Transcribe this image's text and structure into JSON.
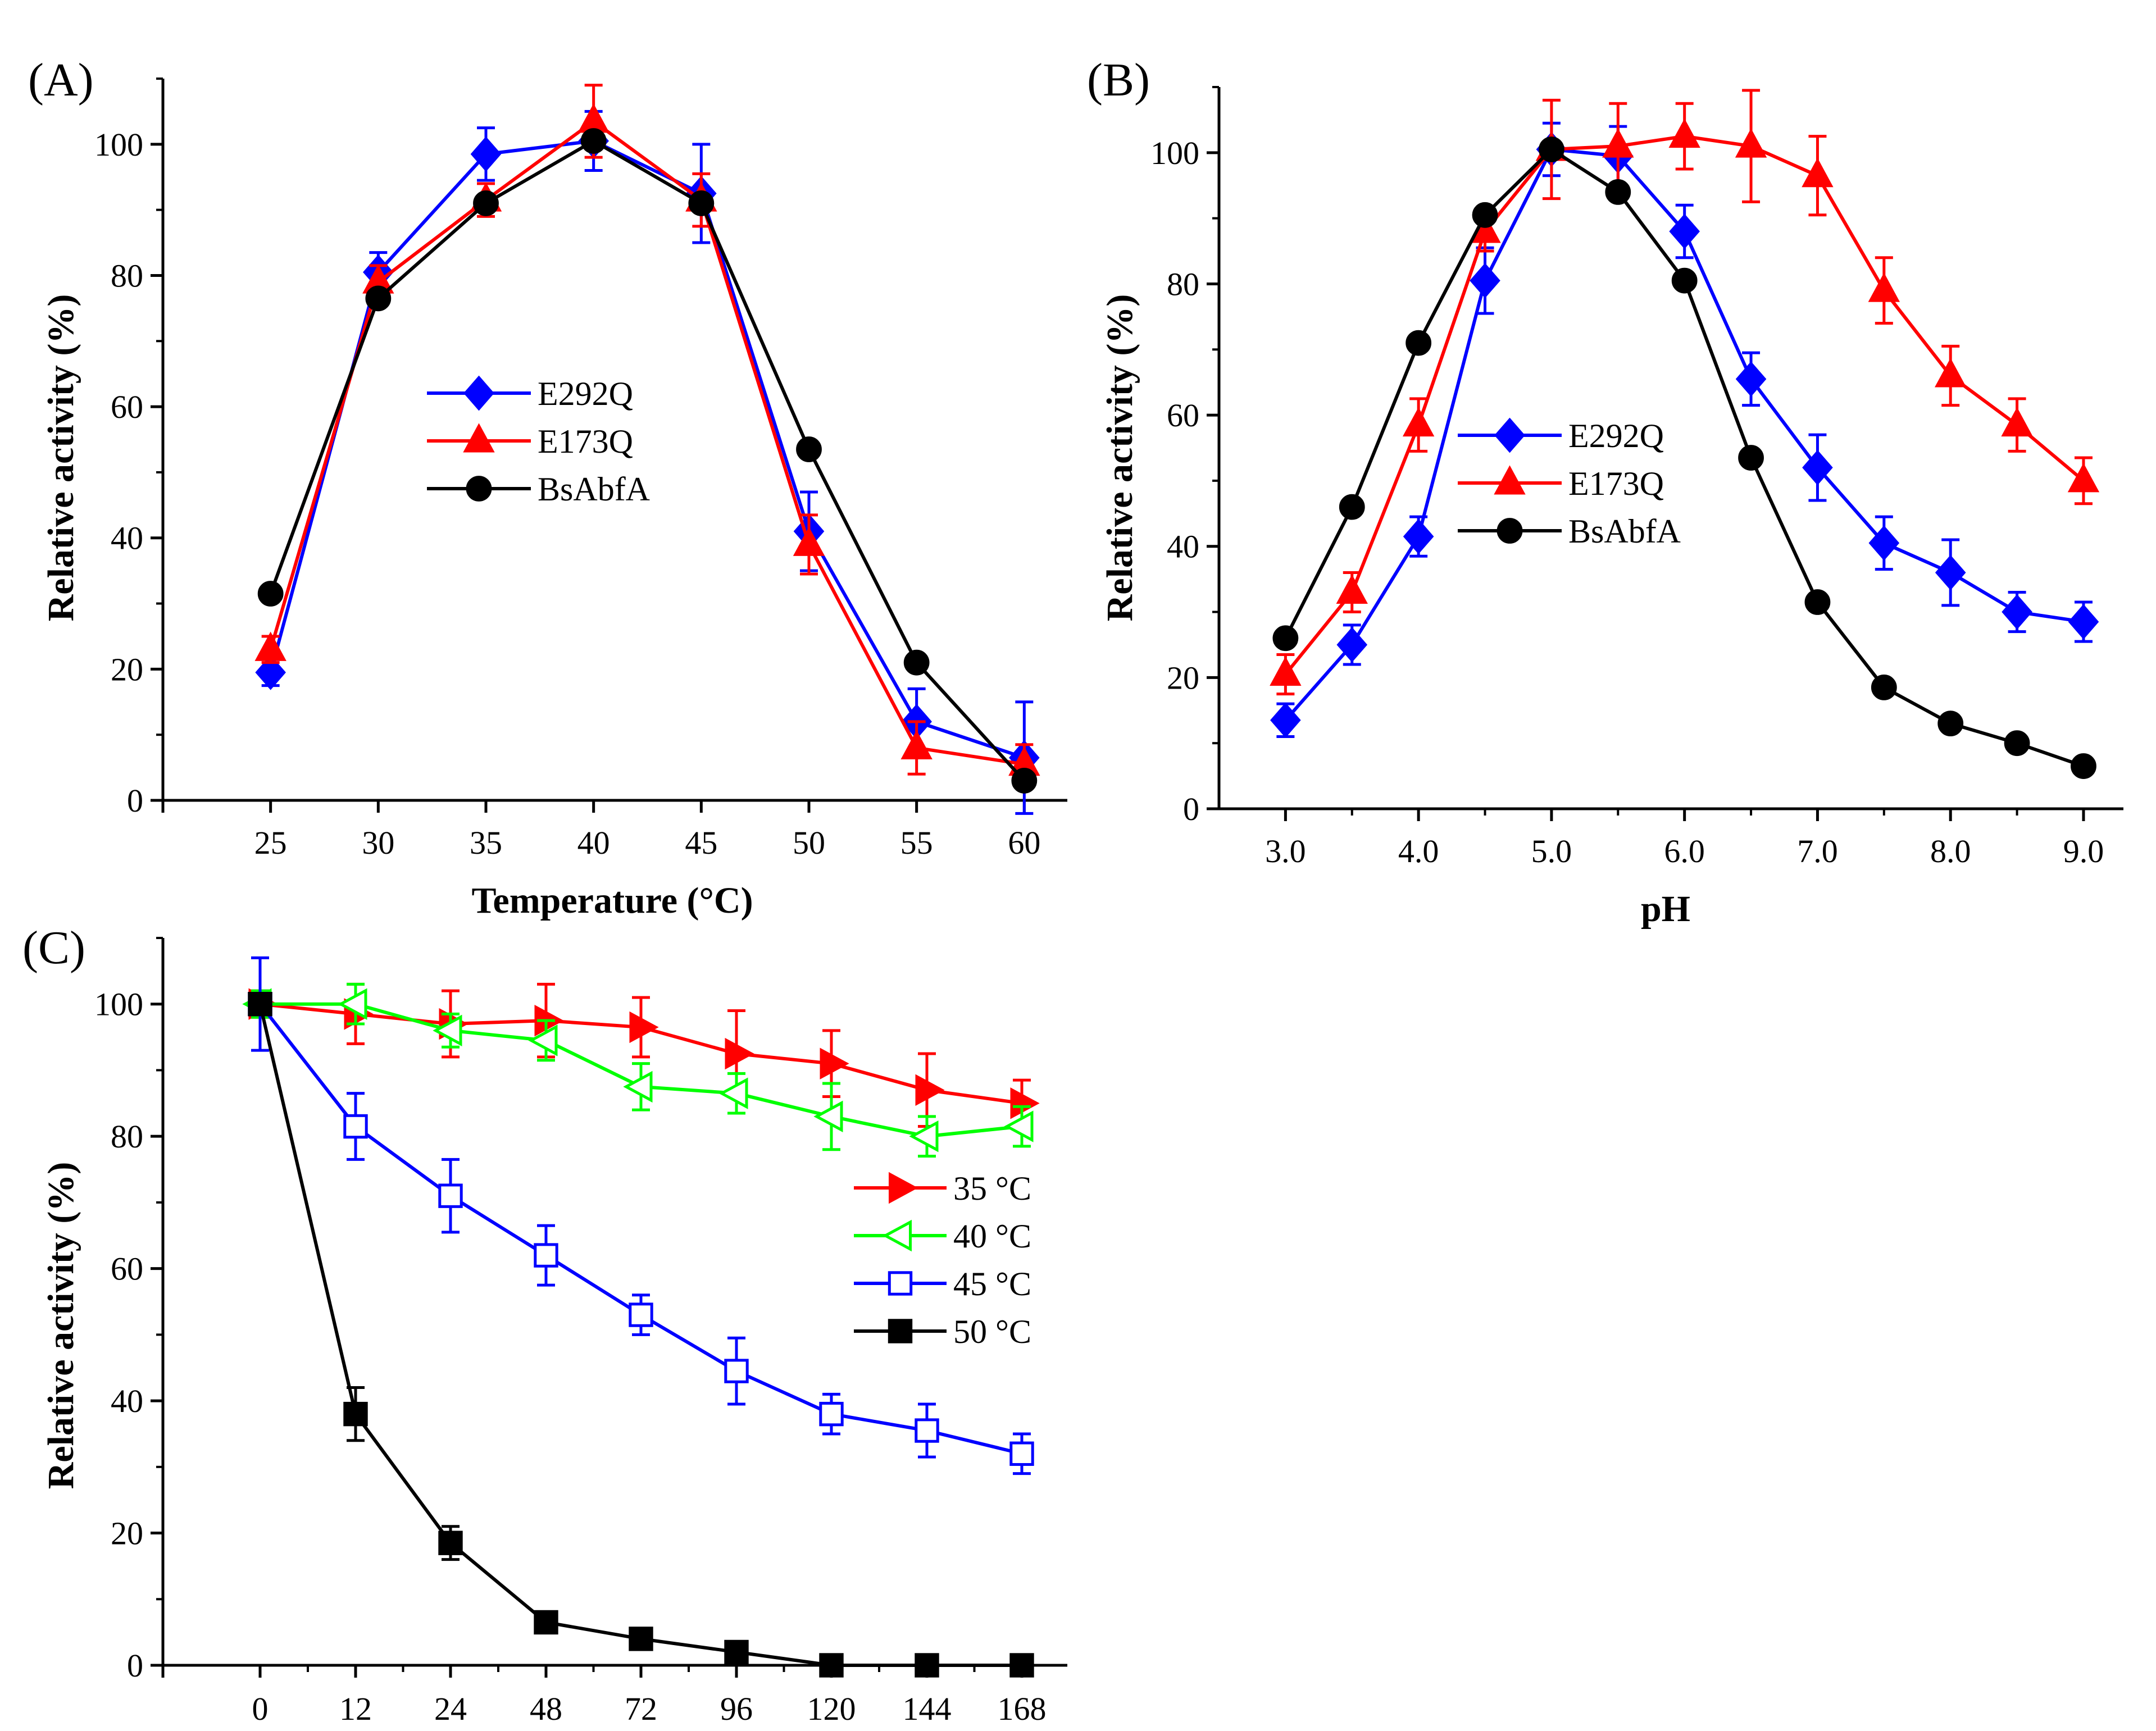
{
  "chart_data": [
    {
      "panel_label": "(A)",
      "type": "line",
      "xlabel": "Temperature (°C)",
      "ylabel": "Relative activity (%)",
      "x": [
        25,
        30,
        35,
        40,
        45,
        50,
        55,
        60
      ],
      "x_tick_labels": [
        "25",
        "30",
        "35",
        "40",
        "45",
        "50",
        "55",
        "60"
      ],
      "xlim": [
        20,
        62
      ],
      "ylim": [
        0,
        110
      ],
      "y_ticks": [
        0,
        20,
        40,
        60,
        80,
        100
      ],
      "legend_position": "center",
      "series": [
        {
          "name": "E292Q",
          "color": "#0000ff",
          "marker": "diamond",
          "filled": true,
          "values": [
            19.5,
            80.5,
            98.5,
            100.5,
            92.5,
            41,
            12,
            6.5
          ],
          "errors": [
            2,
            3,
            4,
            4.5,
            7.5,
            6,
            5,
            8.5
          ]
        },
        {
          "name": "E173Q",
          "color": "#ff0000",
          "marker": "triangle",
          "filled": true,
          "values": [
            23,
            79,
            91.5,
            103.5,
            91.5,
            39,
            8,
            5.5
          ],
          "errors": [
            2,
            2.5,
            2.5,
            5.5,
            4,
            4.5,
            4,
            3
          ]
        },
        {
          "name": "BsAbfA",
          "color": "#000000",
          "marker": "circle",
          "filled": true,
          "values": [
            31.5,
            76.5,
            91,
            100.5,
            91,
            53.5,
            21,
            3
          ],
          "errors": [
            0,
            0,
            0,
            0,
            0,
            0,
            0,
            0
          ]
        }
      ]
    },
    {
      "panel_label": "(B)",
      "type": "line",
      "xlabel": "pH",
      "ylabel": "Relative activity (%)",
      "x": [
        3.0,
        3.5,
        4.0,
        4.5,
        5.0,
        5.5,
        6.0,
        6.5,
        7.0,
        7.5,
        8.0,
        8.5,
        9.0
      ],
      "x_tick_values": [
        3,
        4,
        5,
        6,
        7,
        8,
        9
      ],
      "x_tick_labels": [
        "3.0",
        "4.0",
        "5.0",
        "6.0",
        "7.0",
        "8.0",
        "9.0"
      ],
      "xlim": [
        2.5,
        9.3
      ],
      "ylim": [
        0,
        110
      ],
      "y_ticks": [
        0,
        20,
        40,
        60,
        80,
        100
      ],
      "legend_position": "center-left",
      "series": [
        {
          "name": "E292Q",
          "color": "#0000ff",
          "marker": "diamond",
          "filled": true,
          "values": [
            13.5,
            25,
            41.5,
            80.5,
            100.5,
            99.5,
            88,
            65.5,
            52,
            40.5,
            36,
            30,
            28.5
          ],
          "errors": [
            2.5,
            3,
            3,
            5,
            4,
            4.5,
            4,
            4,
            5,
            4,
            5,
            3,
            3
          ]
        },
        {
          "name": "E173Q",
          "color": "#ff0000",
          "marker": "triangle",
          "filled": true,
          "values": [
            20.5,
            33,
            58.5,
            88,
            100.5,
            101,
            102.5,
            101,
            96.5,
            79,
            66,
            58.5,
            50
          ],
          "errors": [
            3,
            3,
            4,
            3,
            7.5,
            6.5,
            5,
            8.5,
            6,
            5,
            4.5,
            4,
            3.5
          ]
        },
        {
          "name": "BsAbfA",
          "color": "#000000",
          "marker": "circle",
          "filled": true,
          "values": [
            26,
            46,
            71,
            90.5,
            100.5,
            94,
            80.5,
            53.5,
            31.5,
            18.5,
            13,
            10,
            6.5
          ],
          "errors": [
            0,
            0,
            0,
            0,
            0,
            0,
            0,
            0,
            0,
            0,
            0,
            0,
            0
          ]
        }
      ]
    },
    {
      "panel_label": "(C)",
      "type": "line",
      "xlabel": "",
      "ylabel": "Relative activity (%)",
      "x": [
        0,
        12,
        24,
        48,
        72,
        96,
        120,
        144,
        168
      ],
      "x_tick_labels": [
        "0",
        "12",
        "24",
        "48",
        "72",
        "96",
        "120",
        "144",
        "168"
      ],
      "x_scale": "categorical",
      "ylim": [
        0,
        110
      ],
      "y_ticks": [
        0,
        20,
        40,
        60,
        80,
        100
      ],
      "legend_position": "center-right",
      "series": [
        {
          "name": "35 °C",
          "color": "#ff0000",
          "marker": "triangle-right",
          "filled": true,
          "values": [
            100,
            98.5,
            97,
            97.5,
            96.5,
            92.5,
            91,
            87,
            85
          ],
          "errors": [
            2,
            4.5,
            5,
            5.5,
            4.5,
            6.5,
            5,
            5.5,
            3.5
          ]
        },
        {
          "name": "40 °C",
          "color": "#00ff00",
          "marker": "triangle-left",
          "filled": false,
          "values": [
            100,
            100,
            96,
            94.5,
            87.5,
            86.5,
            83,
            80,
            81.5
          ],
          "errors": [
            2,
            3,
            2.5,
            3,
            3.5,
            3,
            5,
            3,
            3
          ]
        },
        {
          "name": "45 °C",
          "color": "#0000ff",
          "marker": "square",
          "filled": false,
          "values": [
            100,
            81.5,
            71,
            62,
            53,
            44.5,
            38,
            35.5,
            32
          ],
          "errors": [
            7,
            5,
            5.5,
            4.5,
            3,
            5,
            3,
            4,
            3
          ]
        },
        {
          "name": "50 °C",
          "color": "#000000",
          "marker": "square",
          "filled": true,
          "values": [
            100,
            38,
            18.5,
            6.5,
            4,
            2,
            0,
            0,
            0
          ],
          "errors": [
            0,
            4,
            2.5,
            1.5,
            0,
            0,
            0,
            0,
            0
          ]
        }
      ]
    }
  ]
}
